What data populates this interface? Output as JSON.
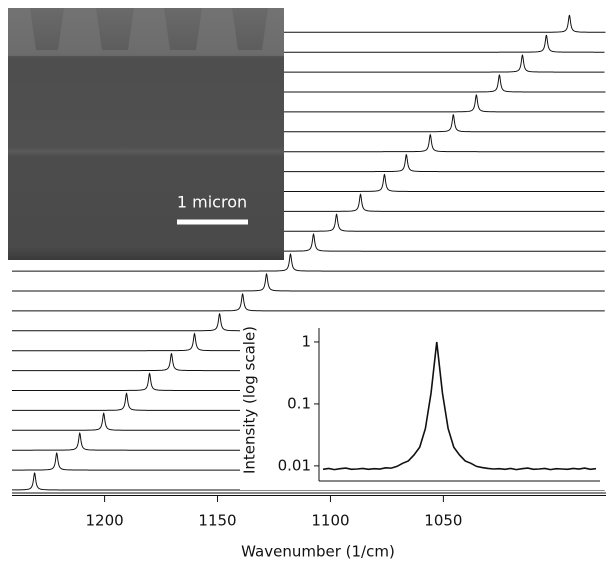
{
  "chart_data": [
    {
      "type": "stacked-spectra",
      "xlabel": "Wavenumber (1/cm)",
      "xlim": [
        1241,
        978
      ],
      "xticks": [
        1200,
        1150,
        1100,
        1050
      ],
      "peaks": [
        1231,
        1221.2,
        1211,
        1200.4,
        1190.3,
        1180.1,
        1170.4,
        1160.2,
        1149.1,
        1138.9,
        1128.3,
        1117.7,
        1107.5,
        1097.3,
        1086.7,
        1076.1,
        1066.4,
        1055.8,
        1045.6,
        1035.4,
        1025.2,
        1015,
        1004.4,
        994.2
      ],
      "color": "#111111",
      "scale_bar_label": "1 micron"
    },
    {
      "type": "line",
      "ylabel": "Intensity (log scale)",
      "log_y": true,
      "ylim": [
        0.0057,
        1.68
      ],
      "yticks": [
        1,
        0.1,
        0.01
      ],
      "color": "#111111",
      "values": [
        0.0088,
        0.0091,
        0.0087,
        0.009,
        0.0092,
        0.0088,
        0.0089,
        0.0091,
        0.0088,
        0.009,
        0.0089,
        0.0093,
        0.0092,
        0.0098,
        0.011,
        0.012,
        0.015,
        0.02,
        0.04,
        0.15,
        1,
        0.15,
        0.04,
        0.02,
        0.015,
        0.012,
        0.011,
        0.0098,
        0.0094,
        0.0091,
        0.0089,
        0.009,
        0.0088,
        0.0091,
        0.0087,
        0.009,
        0.0092,
        0.0088,
        0.0089,
        0.0091,
        0.0087,
        0.009,
        0.0089,
        0.0088,
        0.0091,
        0.0089,
        0.0092,
        0.0088,
        0.009
      ]
    }
  ]
}
